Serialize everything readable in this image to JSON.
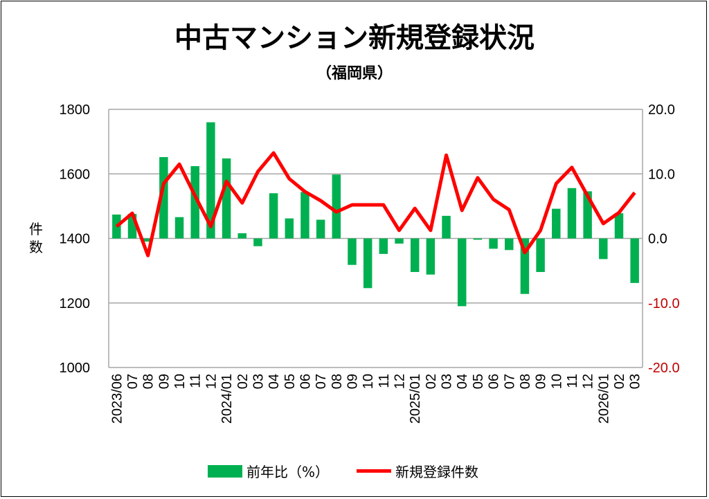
{
  "chart_data": {
    "type": "bar+line",
    "title": "中古マンション新規登録状況",
    "subtitle": "（福岡県）",
    "ylabel": "件数",
    "y_left": {
      "range": [
        1000,
        1800
      ],
      "ticks": [
        "1000",
        "1200",
        "1400",
        "1600",
        "1800"
      ]
    },
    "y_right": {
      "range": [
        -20,
        20
      ],
      "ticks": [
        "-20.0",
        "-10.0",
        "0.0",
        "10.0",
        "20.0"
      ],
      "negative_color": "#c00000"
    },
    "grid": true,
    "legend_position": "bottom",
    "categories": [
      "2023/06",
      "07",
      "08",
      "09",
      "10",
      "11",
      "12",
      "2024/01",
      "02",
      "03",
      "04",
      "05",
      "06",
      "07",
      "08",
      "09",
      "10",
      "11",
      "12",
      "2025/01",
      "02",
      "03",
      "04",
      "05",
      "06",
      "07",
      "08",
      "09",
      "10",
      "11",
      "12",
      "2026/01",
      "02",
      "03"
    ],
    "series": [
      {
        "name": "前年比（%）",
        "type": "bar",
        "axis": "right",
        "color": "#00b050",
        "values": [
          3.7,
          3.8,
          -0.5,
          12.6,
          3.3,
          11.2,
          18.0,
          12.4,
          0.8,
          -1.2,
          7.0,
          3.1,
          7.2,
          2.9,
          9.9,
          -4.1,
          -7.7,
          -2.4,
          -0.8,
          -5.2,
          -5.6,
          3.5,
          -10.5,
          -0.2,
          -1.6,
          -1.8,
          -8.6,
          -5.2,
          4.6,
          7.8,
          7.3,
          -3.2,
          3.9,
          -6.9
        ]
      },
      {
        "name": "新規登録件数",
        "type": "line",
        "axis": "left",
        "color": "#ff0000",
        "values": [
          1437,
          1478,
          1347,
          1570,
          1630,
          1532,
          1437,
          1577,
          1510,
          1607,
          1665,
          1585,
          1545,
          1517,
          1482,
          1504,
          1504,
          1504,
          1425,
          1493,
          1425,
          1658,
          1487,
          1588,
          1521,
          1489,
          1356,
          1425,
          1570,
          1620,
          1532,
          1446,
          1480,
          1542
        ]
      }
    ]
  }
}
